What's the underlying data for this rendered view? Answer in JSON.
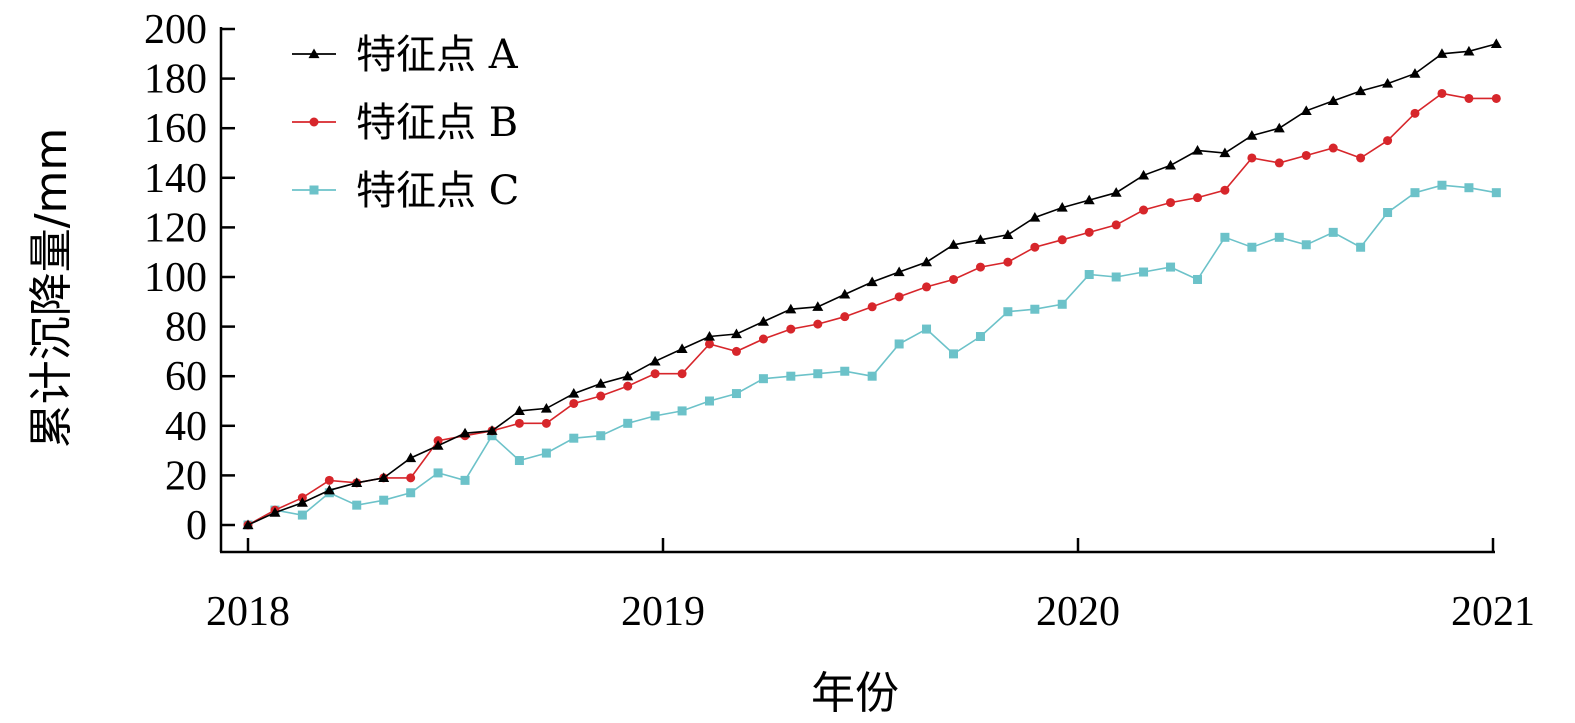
{
  "chart_data": {
    "type": "line",
    "xlabel": "年份",
    "ylabel": "累计沉降量/mm",
    "xlim": [
      2018,
      2021
    ],
    "ylim": [
      0,
      200
    ],
    "x_ticks": [
      {
        "value": 2018,
        "label": "2018"
      },
      {
        "value": 2019,
        "label": "2019"
      },
      {
        "value": 2020,
        "label": "2020"
      },
      {
        "value": 2021,
        "label": "2021"
      }
    ],
    "y_ticks": [
      "0",
      "20",
      "40",
      "60",
      "80",
      "100",
      "120",
      "140",
      "160",
      "180",
      "200"
    ],
    "grid": false,
    "legend_position": "top-left",
    "x": [
      2018.0,
      2018.065,
      2018.131,
      2018.196,
      2018.262,
      2018.327,
      2018.392,
      2018.458,
      2018.523,
      2018.588,
      2018.654,
      2018.719,
      2018.785,
      2018.85,
      2018.915,
      2018.981,
      2019.046,
      2019.112,
      2019.177,
      2019.242,
      2019.308,
      2019.373,
      2019.438,
      2019.504,
      2019.569,
      2019.635,
      2019.7,
      2019.765,
      2019.831,
      2019.896,
      2019.962,
      2020.027,
      2020.092,
      2020.158,
      2020.223,
      2020.288,
      2020.354,
      2020.419,
      2020.485,
      2020.55,
      2020.615,
      2020.681,
      2020.746,
      2020.812,
      2020.877,
      2020.942,
      2021.008
    ],
    "series": [
      {
        "name": "特征点 A",
        "color": "#000000",
        "marker": "triangle",
        "values": [
          0,
          5,
          9,
          14,
          17,
          19,
          27,
          32,
          37,
          38,
          46,
          47,
          53,
          57,
          60,
          66,
          71,
          76,
          77,
          82,
          87,
          88,
          93,
          98,
          102,
          106,
          113,
          115,
          117,
          124,
          128,
          131,
          134,
          141,
          145,
          151,
          150,
          157,
          160,
          167,
          171,
          175,
          178,
          182,
          190,
          191,
          194
        ]
      },
      {
        "name": "特征点 B",
        "color": "#d7262b",
        "marker": "circle",
        "values": [
          0,
          6,
          11,
          18,
          17,
          19,
          19,
          34,
          36,
          38,
          41,
          41,
          49,
          52,
          56,
          61,
          61,
          73,
          70,
          75,
          79,
          81,
          84,
          88,
          92,
          96,
          99,
          104,
          106,
          112,
          115,
          118,
          121,
          127,
          130,
          132,
          135,
          148,
          146,
          149,
          152,
          148,
          155,
          166,
          174,
          172,
          172
        ]
      },
      {
        "name": "特征点 C",
        "color": "#6cc2c9",
        "marker": "square",
        "values": [
          0,
          6,
          4,
          13,
          8,
          10,
          13,
          21,
          18,
          36,
          26,
          29,
          35,
          36,
          41,
          44,
          46,
          50,
          53,
          59,
          60,
          61,
          62,
          60,
          73,
          79,
          69,
          76,
          86,
          87,
          89,
          101,
          100,
          102,
          104,
          99,
          116,
          112,
          116,
          113,
          118,
          112,
          126,
          134,
          137,
          136,
          134
        ]
      }
    ]
  }
}
